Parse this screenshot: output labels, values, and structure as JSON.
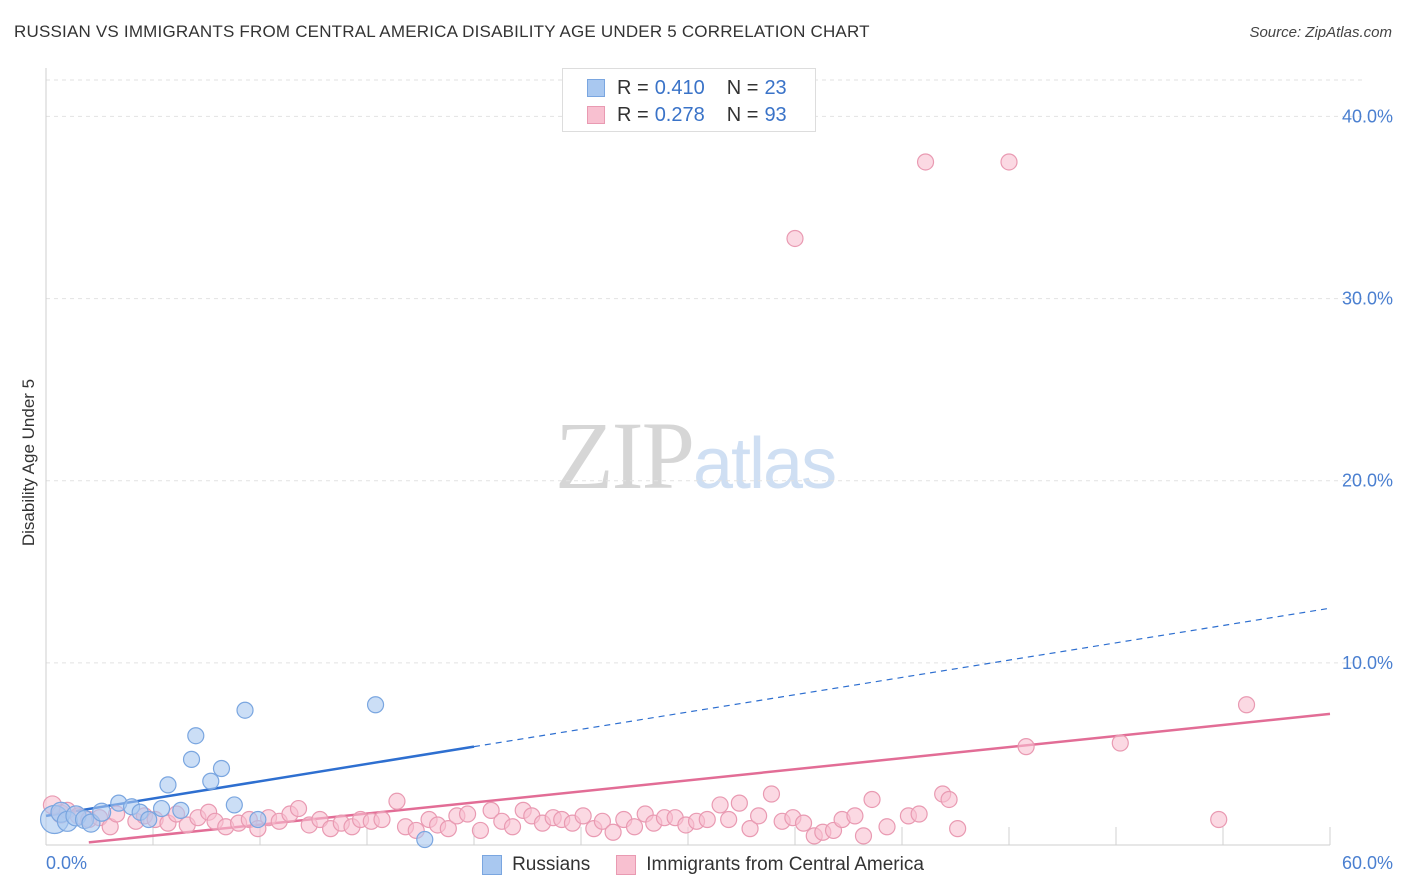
{
  "header": {
    "title": "RUSSIAN VS IMMIGRANTS FROM CENTRAL AMERICA DISABILITY AGE UNDER 5 CORRELATION CHART",
    "source": "Source: ZipAtlas.com"
  },
  "watermark": {
    "zip": "ZIP",
    "atlas": "atlas"
  },
  "legend": {
    "r_label": "R = ",
    "n_label": "N = ",
    "series": [
      {
        "name": "Russians",
        "r": "0.410",
        "n": "23",
        "color": "#a9c8f0",
        "stroke": "#7aa6e0"
      },
      {
        "name": "Immigrants from Central America",
        "r": "0.278",
        "n": "93",
        "color": "#f8c0d0",
        "stroke": "#e99ab2"
      }
    ]
  },
  "chart_data": {
    "type": "scatter",
    "title": "RUSSIAN VS IMMIGRANTS FROM CENTRAL AMERICA DISABILITY AGE UNDER 5 CORRELATION CHART",
    "xlabel": "",
    "ylabel": "Disability Age Under 5",
    "xlim": [
      0,
      60
    ],
    "ylim": [
      0,
      42
    ],
    "x_tick_labels": [
      "0.0%",
      "60.0%"
    ],
    "y_ticks": [
      10,
      20,
      30,
      40
    ],
    "y_tick_labels": [
      "10.0%",
      "20.0%",
      "30.0%",
      "40.0%"
    ],
    "grid": true,
    "series": [
      {
        "name": "Russians",
        "color": "#a9c8f0",
        "stroke": "#7aa6e0",
        "trend": {
          "x0": 0,
          "y0": 1.6,
          "x1": 60,
          "y1": 13.0,
          "solid_until": 20
        },
        "trend_color": "#2e6fd0",
        "points": [
          [
            0.4,
            1.4,
            14
          ],
          [
            0.7,
            1.8,
            10
          ],
          [
            1.0,
            1.3,
            10
          ],
          [
            1.4,
            1.6,
            10
          ],
          [
            1.8,
            1.4,
            9
          ],
          [
            2.1,
            1.2,
            9
          ],
          [
            2.6,
            1.8,
            9
          ],
          [
            3.4,
            2.3,
            8
          ],
          [
            4.0,
            2.1,
            8
          ],
          [
            4.4,
            1.8,
            8
          ],
          [
            4.8,
            1.4,
            8
          ],
          [
            5.4,
            2.0,
            8
          ],
          [
            5.7,
            3.3,
            8
          ],
          [
            6.3,
            1.9,
            8
          ],
          [
            6.8,
            4.7,
            8
          ],
          [
            7.0,
            6.0,
            8
          ],
          [
            7.7,
            3.5,
            8
          ],
          [
            8.2,
            4.2,
            8
          ],
          [
            8.8,
            2.2,
            8
          ],
          [
            9.3,
            7.4,
            8
          ],
          [
            9.9,
            1.4,
            8
          ],
          [
            15.4,
            7.7,
            8
          ],
          [
            17.7,
            0.3,
            8
          ]
        ]
      },
      {
        "name": "Immigrants from Central America",
        "color": "#f8c0d0",
        "stroke": "#e99ab2",
        "trend": {
          "x0": 0,
          "y0": -0.1,
          "x1": 60,
          "y1": 7.2
        },
        "trend_color": "#e26d96",
        "points": [
          [
            0.3,
            2.2,
            9
          ],
          [
            0.7,
            1.7,
            9
          ],
          [
            1.0,
            1.9,
            8
          ],
          [
            1.5,
            1.6,
            8
          ],
          [
            2.0,
            1.4,
            8
          ],
          [
            2.5,
            1.5,
            8
          ],
          [
            3.0,
            1.0,
            8
          ],
          [
            3.3,
            1.7,
            8
          ],
          [
            4.2,
            1.3,
            8
          ],
          [
            4.6,
            1.6,
            8
          ],
          [
            5.1,
            1.4,
            8
          ],
          [
            5.7,
            1.2,
            8
          ],
          [
            6.1,
            1.7,
            8
          ],
          [
            6.6,
            1.1,
            8
          ],
          [
            7.1,
            1.5,
            8
          ],
          [
            7.6,
            1.8,
            8
          ],
          [
            7.9,
            1.3,
            8
          ],
          [
            8.4,
            1.0,
            8
          ],
          [
            9.0,
            1.2,
            8
          ],
          [
            9.5,
            1.4,
            8
          ],
          [
            9.9,
            0.9,
            8
          ],
          [
            10.4,
            1.5,
            8
          ],
          [
            10.9,
            1.3,
            8
          ],
          [
            11.4,
            1.7,
            8
          ],
          [
            11.8,
            2.0,
            8
          ],
          [
            12.3,
            1.1,
            8
          ],
          [
            12.8,
            1.4,
            8
          ],
          [
            13.3,
            0.9,
            8
          ],
          [
            13.8,
            1.2,
            8
          ],
          [
            14.3,
            1.0,
            8
          ],
          [
            14.7,
            1.4,
            8
          ],
          [
            15.2,
            1.3,
            8
          ],
          [
            15.7,
            1.4,
            8
          ],
          [
            16.4,
            2.4,
            8
          ],
          [
            16.8,
            1.0,
            8
          ],
          [
            17.3,
            0.8,
            8
          ],
          [
            17.9,
            1.4,
            8
          ],
          [
            18.3,
            1.1,
            8
          ],
          [
            18.8,
            0.9,
            8
          ],
          [
            19.2,
            1.6,
            8
          ],
          [
            19.7,
            1.7,
            8
          ],
          [
            20.3,
            0.8,
            8
          ],
          [
            20.8,
            1.9,
            8
          ],
          [
            21.3,
            1.3,
            8
          ],
          [
            21.8,
            1.0,
            8
          ],
          [
            22.3,
            1.9,
            8
          ],
          [
            22.7,
            1.6,
            8
          ],
          [
            23.2,
            1.2,
            8
          ],
          [
            23.7,
            1.5,
            8
          ],
          [
            24.1,
            1.4,
            8
          ],
          [
            24.6,
            1.2,
            8
          ],
          [
            25.1,
            1.6,
            8
          ],
          [
            25.6,
            0.9,
            8
          ],
          [
            26.0,
            1.3,
            8
          ],
          [
            26.5,
            0.7,
            8
          ],
          [
            27.0,
            1.4,
            8
          ],
          [
            27.5,
            1.0,
            8
          ],
          [
            28.0,
            1.7,
            8
          ],
          [
            28.4,
            1.2,
            8
          ],
          [
            28.9,
            1.5,
            8
          ],
          [
            29.4,
            1.5,
            8
          ],
          [
            29.9,
            1.1,
            8
          ],
          [
            30.4,
            1.3,
            8
          ],
          [
            30.9,
            1.4,
            8
          ],
          [
            31.5,
            2.2,
            8
          ],
          [
            31.9,
            1.4,
            8
          ],
          [
            32.4,
            2.3,
            8
          ],
          [
            32.9,
            0.9,
            8
          ],
          [
            33.3,
            1.6,
            8
          ],
          [
            33.9,
            2.8,
            8
          ],
          [
            34.4,
            1.3,
            8
          ],
          [
            34.9,
            1.5,
            8
          ],
          [
            35.4,
            1.2,
            8
          ],
          [
            35.9,
            0.5,
            8
          ],
          [
            36.3,
            0.7,
            8
          ],
          [
            36.8,
            0.8,
            8
          ],
          [
            37.2,
            1.4,
            8
          ],
          [
            37.8,
            1.6,
            8
          ],
          [
            38.2,
            0.5,
            8
          ],
          [
            38.6,
            2.5,
            8
          ],
          [
            39.3,
            1.0,
            8
          ],
          [
            40.3,
            1.6,
            8
          ],
          [
            40.8,
            1.7,
            8
          ],
          [
            41.9,
            2.8,
            8
          ],
          [
            42.2,
            2.5,
            8
          ],
          [
            42.6,
            0.9,
            8
          ],
          [
            45.8,
            5.4,
            8
          ],
          [
            50.2,
            5.6,
            8
          ],
          [
            54.8,
            1.4,
            8
          ],
          [
            56.1,
            7.7,
            8
          ],
          [
            35.0,
            33.3,
            8
          ],
          [
            41.1,
            37.5,
            8
          ],
          [
            45.0,
            37.5,
            8
          ]
        ]
      }
    ]
  }
}
